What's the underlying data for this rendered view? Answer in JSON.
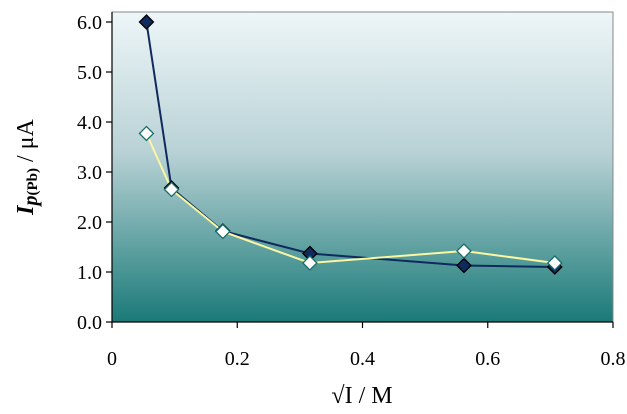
{
  "chart_data": {
    "type": "line",
    "xlabel": "√I / M",
    "ylabel": {
      "main": "I",
      "sub_p": "p",
      "sub_pb": "(Pb)",
      "unit": " / μA"
    },
    "xlim": [
      0,
      0.8
    ],
    "ylim": [
      0,
      6.2
    ],
    "x_ticks": [
      "0",
      "0.2",
      "0.4",
      "0.6",
      "0.8"
    ],
    "x_tick_values": [
      0,
      0.2,
      0.4,
      0.6,
      0.8
    ],
    "y_ticks": [
      "0.0",
      "1.0",
      "2.0",
      "3.0",
      "4.0",
      "5.0",
      "6.0"
    ],
    "y_tick_values": [
      0,
      1,
      2,
      3,
      4,
      5,
      6
    ],
    "grid": false,
    "background_gradient": [
      "#eef6f8",
      "#1a7a78"
    ],
    "series": [
      {
        "color": "#0f2a5c",
        "marker_fill": "#0f2a5c",
        "marker": "diamond",
        "x": [
          0.055,
          0.095,
          0.177,
          0.316,
          0.562,
          0.707
        ],
        "y": [
          6.0,
          2.68,
          1.82,
          1.37,
          1.13,
          1.1
        ]
      },
      {
        "color": "#fbf6a0",
        "marker_fill": "#ffffff",
        "marker": "diamond",
        "x": [
          0.055,
          0.095,
          0.177,
          0.316,
          0.562,
          0.707
        ],
        "y": [
          3.77,
          2.65,
          1.81,
          1.18,
          1.42,
          1.18
        ]
      }
    ]
  }
}
